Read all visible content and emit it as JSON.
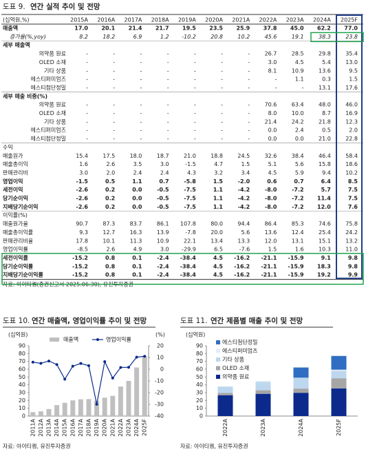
{
  "table": {
    "figure_label": "도표 9.",
    "title": "연간 실적 추이 및 전망",
    "header": [
      "(십억원,%)",
      "2015A",
      "2016A",
      "2017A",
      "2018A",
      "2019A",
      "2020A",
      "2021A",
      "2022A",
      "2023A",
      "2024A",
      "2025F"
    ],
    "rows": [
      [
        "매출액",
        "17.0",
        "20.1",
        "21.4",
        "21.7",
        "19.5",
        "23.5",
        "25.9",
        "37.8",
        "45.0",
        "62.2",
        "77.0"
      ],
      [
        "증가율(%,yoy)",
        "8.2",
        "18.2",
        "6.9",
        "1.2",
        "-10.2",
        "20.8",
        "10.2",
        "45.6",
        "19.1",
        "38.3",
        "23.8"
      ],
      [
        "세부 매출액"
      ],
      [
        "의약품 원료",
        "-",
        "-",
        "-",
        "-",
        "-",
        "-",
        "-",
        "26.7",
        "28.5",
        "29.8",
        "35.4"
      ],
      [
        "OLED 소재",
        "-",
        "-",
        "-",
        "-",
        "-",
        "-",
        "-",
        "3.0",
        "4.5",
        "5.4",
        "13.0"
      ],
      [
        "기타 상품",
        "-",
        "-",
        "-",
        "-",
        "-",
        "-",
        "-",
        "8.1",
        "10.9",
        "13.6",
        "9.5"
      ],
      [
        "에스티퍼미엄즈",
        "-",
        "-",
        "-",
        "-",
        "-",
        "-",
        "-",
        "-",
        "1.1",
        "0.3",
        "1.5"
      ],
      [
        "에스티첨단정밀",
        "-",
        "-",
        "-",
        "-",
        "-",
        "-",
        "-",
        "-",
        "-",
        "13.1",
        "17.6"
      ],
      [
        "세부 매출 비중(%)"
      ],
      [
        "의약품 원료",
        "-",
        "-",
        "-",
        "-",
        "-",
        "-",
        "-",
        "70.6",
        "63.4",
        "48.0",
        "46.0"
      ],
      [
        "OLED 소재",
        "-",
        "-",
        "-",
        "-",
        "-",
        "-",
        "-",
        "8.0",
        "10.0",
        "8.7",
        "16.9"
      ],
      [
        "기타 상품",
        "-",
        "-",
        "-",
        "-",
        "-",
        "-",
        "-",
        "21.4",
        "24.2",
        "21.8",
        "12.3"
      ],
      [
        "에스티퍼미엄즈",
        "-",
        "-",
        "-",
        "-",
        "-",
        "-",
        "-",
        "0.0",
        "2.4",
        "0.5",
        "2.0"
      ],
      [
        "에스티첨단정밀",
        "-",
        "-",
        "-",
        "-",
        "-",
        "-",
        "-",
        "0.0",
        "0.0",
        "21.0",
        "22.8"
      ],
      [
        "수익"
      ],
      [
        "매출원가",
        "15.4",
        "17.5",
        "18.0",
        "18.7",
        "21.0",
        "18.8",
        "24.5",
        "32.6",
        "38.4",
        "46.4",
        "58.4"
      ],
      [
        "매출총이익",
        "1.6",
        "2.6",
        "3.5",
        "3.0",
        "-1.5",
        "4.7",
        "1.5",
        "5.1",
        "5.6",
        "15.8",
        "18.6"
      ],
      [
        "판매관리비",
        "3.0",
        "2.0",
        "2.4",
        "2.4",
        "4.3",
        "3.2",
        "3.4",
        "4.5",
        "5.9",
        "9.4",
        "10.2"
      ],
      [
        "영업이익",
        "-1.5",
        "0.5",
        "1.1",
        "0.7",
        "-5.8",
        "1.5",
        "-2.0",
        "0.6",
        "0.7",
        "6.4",
        "8.5"
      ],
      [
        "세전이익",
        "-2.6",
        "0.2",
        "0.0",
        "-0.5",
        "-7.5",
        "1.1",
        "-4.2",
        "-8.0",
        "-7.2",
        "5.7",
        "7.5"
      ],
      [
        "당기순이익",
        "-2.6",
        "0.2",
        "0.0",
        "-0.5",
        "-7.5",
        "1.1",
        "-4.2",
        "-8.0",
        "-7.2",
        "11.4",
        "7.5"
      ],
      [
        "지배당기순이익",
        "-2.6",
        "0.2",
        "0.0",
        "-0.5",
        "-7.5",
        "1.1",
        "-4.2",
        "-8.0",
        "-7.2",
        "12.0",
        "7.6"
      ],
      [
        "이익률(%)"
      ],
      [
        "매출원가율",
        "90.7",
        "87.3",
        "83.7",
        "86.1",
        "107.8",
        "80.0",
        "94.4",
        "86.4",
        "85.3",
        "74.6",
        "75.8"
      ],
      [
        "매출총이익률",
        "9.3",
        "12.7",
        "16.3",
        "13.9",
        "-7.8",
        "20.0",
        "5.6",
        "13.6",
        "12.4",
        "25.4",
        "24.2"
      ],
      [
        "판매관리비율",
        "17.8",
        "10.1",
        "11.3",
        "10.9",
        "22.1",
        "13.4",
        "13.3",
        "12.0",
        "13.1",
        "15.1",
        "13.2"
      ],
      [
        "영업이익률",
        "-8.5",
        "2.6",
        "4.9",
        "3.0",
        "-29.9",
        "6.5",
        "-7.6",
        "1.5",
        "1.6",
        "10.3",
        "11.0"
      ],
      [
        "세전이익률",
        "-15.2",
        "0.8",
        "0.1",
        "-2.4",
        "-38.4",
        "4.5",
        "-16.2",
        "-21.1",
        "-15.9",
        "9.1",
        "9.8"
      ],
      [
        "당기순이익률",
        "-15.2",
        "0.8",
        "0.1",
        "-2.4",
        "-38.4",
        "4.5",
        "-16.2",
        "-21.1",
        "-15.9",
        "18.3",
        "9.8"
      ],
      [
        "지배당기순이익률",
        "-15.2",
        "0.8",
        "0.1",
        "-2.4",
        "-38.4",
        "4.5",
        "-16.2",
        "-21.1",
        "-15.9",
        "19.2",
        "9.9"
      ]
    ],
    "source": "자료: 아이티켐(증권신고서 2025.06.30), 유진투자증권"
  },
  "chart_data": [
    {
      "type": "combo",
      "figure_label": "도표 10.",
      "title": "연간 매출액, 영업이익률 추이 및 전망",
      "ylabel": "(십억원)",
      "y2label": "(%)",
      "categories": [
        "2011A",
        "2012A",
        "2013A",
        "2014A",
        "2015A",
        "2016A",
        "2017A",
        "2018A",
        "2019A",
        "2020A",
        "2021A",
        "2022A",
        "2023A",
        "2024A",
        "2025F"
      ],
      "series": [
        {
          "name": "매출액",
          "kind": "bar",
          "color": "#bfbfbf",
          "values": [
            5,
            6,
            9,
            14,
            17.0,
            20.1,
            21.4,
            21.7,
            19.5,
            23.5,
            25.9,
            37.8,
            45.0,
            62.2,
            77.0
          ]
        },
        {
          "name": "영업이익률",
          "kind": "line",
          "axis": "y2",
          "color": "#0b2a8c",
          "values": [
            6,
            5,
            7,
            4,
            -8.5,
            2.6,
            4.9,
            3.0,
            -29.9,
            6.5,
            -7.6,
            1.5,
            1.6,
            10.3,
            11.0
          ]
        }
      ],
      "ylim": [
        0,
        90
      ],
      "yticks": [
        0,
        10,
        20,
        30,
        40,
        50,
        60,
        70,
        80,
        90
      ],
      "y2lim": [
        -40,
        20
      ],
      "y2ticks": [
        -40,
        -30,
        -20,
        -10,
        0,
        10,
        20
      ],
      "source": "자료: 아이티켐, 유진투자증권"
    },
    {
      "type": "stacked_bar",
      "figure_label": "도표 11.",
      "title": "연간 제품별 매출 추이 및 전망",
      "ylabel": "(십억원)",
      "categories": [
        "2022A",
        "2023A",
        "2024A",
        "2025F"
      ],
      "series": [
        {
          "name": "의약품 원료",
          "color": "#0b2a8c",
          "values": [
            26.7,
            28.5,
            29.8,
            35.4
          ]
        },
        {
          "name": "OLED 소재",
          "color": "#a6a6a6",
          "values": [
            3.0,
            4.5,
            5.4,
            13.0
          ]
        },
        {
          "name": "기타 상품",
          "color": "#bdd7ee",
          "values": [
            8.1,
            10.9,
            13.6,
            9.5
          ]
        },
        {
          "name": "에스티퍼미엄즈",
          "color": "#e4ecf6",
          "values": [
            null,
            1.1,
            0.3,
            1.5
          ]
        },
        {
          "name": "에스티첨단정밀",
          "color": "#2f6ec2",
          "values": [
            null,
            null,
            13.1,
            17.6
          ]
        }
      ],
      "ylim": [
        0,
        90
      ],
      "yticks": [
        0,
        10,
        20,
        30,
        40,
        50,
        60,
        70,
        80,
        90
      ],
      "source": "자료: 아이티켐, 유진투자증권"
    }
  ]
}
